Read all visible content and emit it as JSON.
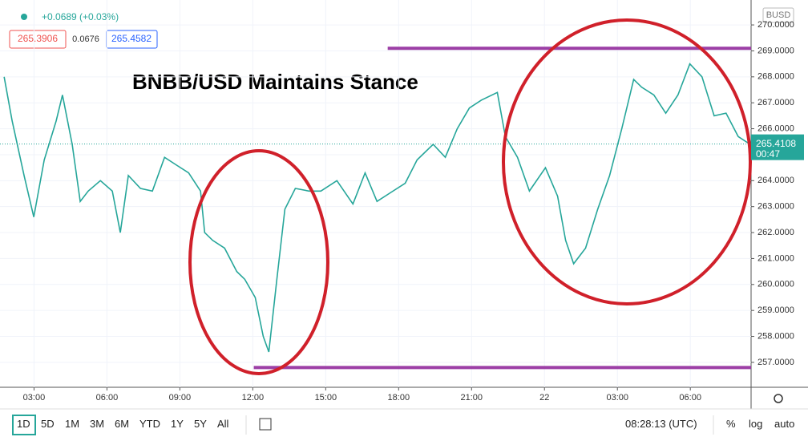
{
  "header": {
    "change": "+0.0689 (+0.03%)",
    "bid": "265.3906",
    "spread": "0.0676",
    "ask": "265.4582",
    "currency": "BUSD"
  },
  "chart_data": {
    "type": "line",
    "title": "BNBB/USD Maintains Stance",
    "x": [
      1.77,
      2.1,
      2.59,
      2.99,
      3.42,
      3.91,
      4.17,
      4.57,
      4.9,
      5.23,
      5.73,
      6.22,
      6.55,
      6.88,
      7.38,
      7.87,
      8.37,
      8.86,
      9.36,
      9.85,
      10.02,
      10.35,
      10.84,
      11.34,
      11.67,
      12.1,
      12.43,
      12.66,
      12.99,
      13.32,
      13.75,
      14.31,
      14.8,
      15.46,
      16.12,
      16.62,
      17.11,
      17.77,
      18.27,
      18.76,
      19.42,
      19.92,
      20.41,
      20.91,
      21.4,
      22.06,
      22.39,
      22.89,
      23.38,
      24.04,
      24.54,
      24.87,
      25.2,
      25.69,
      26.19,
      26.68,
      27.18,
      27.67,
      28.0,
      28.5,
      28.99,
      29.49,
      29.98,
      30.48,
      30.98,
      31.47,
      31.97,
      32.46
    ],
    "series": [
      {
        "color": "#26a69a",
        "values": [
          268.0,
          266.3,
          264.2,
          262.6,
          264.8,
          266.3,
          267.3,
          265.4,
          263.2,
          263.6,
          264.0,
          263.6,
          262.0,
          264.2,
          263.7,
          263.6,
          264.9,
          264.6,
          264.3,
          263.6,
          262.0,
          261.7,
          261.4,
          260.5,
          260.2,
          259.5,
          258.0,
          257.4,
          260.2,
          262.9,
          263.7,
          263.6,
          263.6,
          264.0,
          263.1,
          264.3,
          263.2,
          263.6,
          263.9,
          264.8,
          265.4,
          264.9,
          266.0,
          266.8,
          267.1,
          267.4,
          265.7,
          264.9,
          263.6,
          264.5,
          263.4,
          261.7,
          260.8,
          261.4,
          262.9,
          264.2,
          266.0,
          267.9,
          267.6,
          267.3,
          266.6,
          267.3,
          268.5,
          268.0,
          266.5,
          266.6,
          265.7,
          265.4
        ]
      }
    ],
    "xlim": [
      1.6,
      32.5
    ],
    "ylim": [
      256.04,
      270.96
    ],
    "xticks": [
      {
        "value": 3,
        "label": "03:00"
      },
      {
        "value": 6,
        "label": "06:00"
      },
      {
        "value": 9,
        "label": "09:00"
      },
      {
        "value": 12,
        "label": "12:00"
      },
      {
        "value": 15,
        "label": "15:00"
      },
      {
        "value": 18,
        "label": "18:00"
      },
      {
        "value": 21,
        "label": "21:00"
      },
      {
        "value": 24,
        "label": "22"
      },
      {
        "value": 27,
        "label": "03:00"
      },
      {
        "value": 30,
        "label": "06:00"
      }
    ],
    "yticks": [
      {
        "value": 257,
        "label": "257.0000"
      },
      {
        "value": 258,
        "label": "258.0000"
      },
      {
        "value": 259,
        "label": "259.0000"
      },
      {
        "value": 260,
        "label": "260.0000"
      },
      {
        "value": 261,
        "label": "261.0000"
      },
      {
        "value": 262,
        "label": "262.0000"
      },
      {
        "value": 263,
        "label": "263.0000"
      },
      {
        "value": 264,
        "label": "264.0000"
      },
      {
        "value": 265,
        "label": "265.0000"
      },
      {
        "value": 266,
        "label": "266.0000"
      },
      {
        "value": 267,
        "label": "267.0000"
      },
      {
        "value": 268,
        "label": "268.0000"
      },
      {
        "value": 269,
        "label": "269.0000"
      },
      {
        "value": 270,
        "label": "270.0000"
      }
    ],
    "grid": true,
    "last_price": 265.4108,
    "countdown": "00:47",
    "levels": [
      {
        "value": 269.1,
        "from": 17.55,
        "color": "#9c3fa6"
      },
      {
        "value": 256.8,
        "from": 12.04,
        "color": "#9c3fa6"
      }
    ]
  },
  "toolbar": {
    "ranges": [
      "1D",
      "5D",
      "1M",
      "3M",
      "6M",
      "YTD",
      "1Y",
      "5Y",
      "All"
    ],
    "clock": "08:28:13 (UTC)",
    "options": [
      "%",
      "log",
      "auto"
    ]
  }
}
